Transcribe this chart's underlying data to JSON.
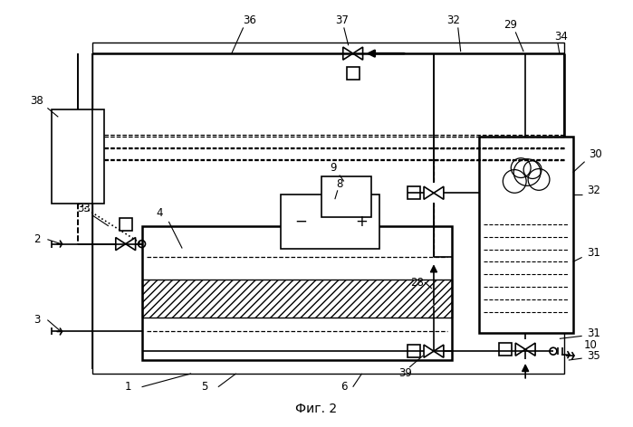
{
  "title": "Фиг. 2",
  "bg_color": "#ffffff",
  "fig_width": 6.99,
  "fig_height": 4.72,
  "dpi": 100
}
